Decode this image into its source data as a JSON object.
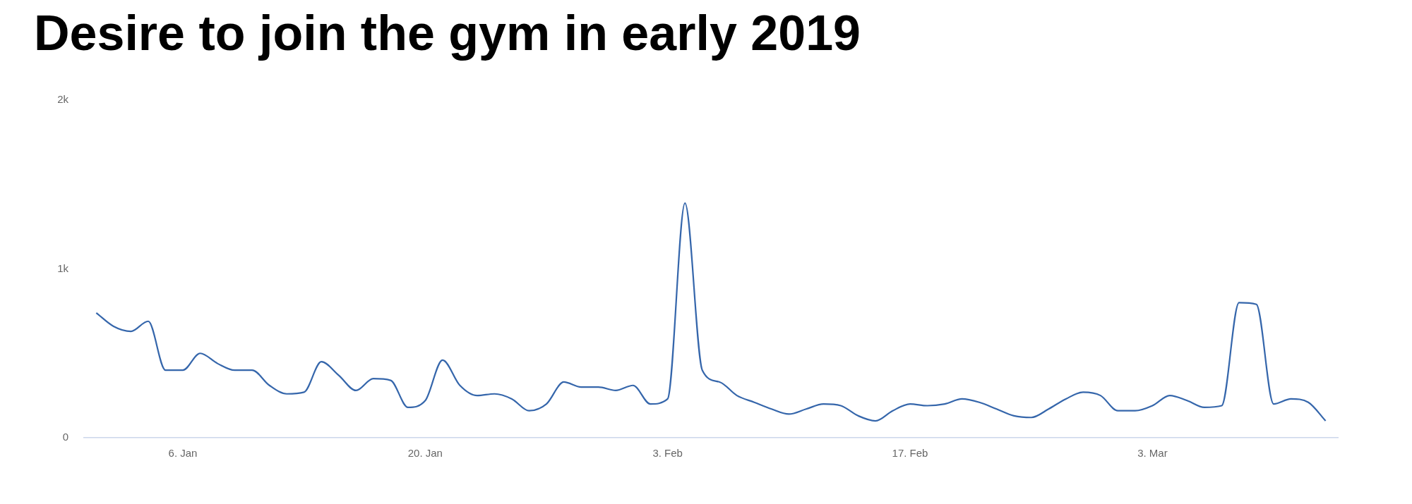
{
  "chart_data": {
    "type": "line",
    "title": "Desire to join the gym in early 2019",
    "x": [
      "2019-01-01",
      "2019-01-02",
      "2019-01-03",
      "2019-01-04",
      "2019-01-05",
      "2019-01-06",
      "2019-01-07",
      "2019-01-08",
      "2019-01-09",
      "2019-01-10",
      "2019-01-11",
      "2019-01-12",
      "2019-01-13",
      "2019-01-14",
      "2019-01-15",
      "2019-01-16",
      "2019-01-17",
      "2019-01-18",
      "2019-01-19",
      "2019-01-20",
      "2019-01-21",
      "2019-01-22",
      "2019-01-23",
      "2019-01-24",
      "2019-01-25",
      "2019-01-26",
      "2019-01-27",
      "2019-01-28",
      "2019-01-29",
      "2019-01-30",
      "2019-01-31",
      "2019-02-01",
      "2019-02-02",
      "2019-02-03",
      "2019-02-04",
      "2019-02-05",
      "2019-02-06",
      "2019-02-07",
      "2019-02-08",
      "2019-02-09",
      "2019-02-10",
      "2019-02-11",
      "2019-02-12",
      "2019-02-13",
      "2019-02-14",
      "2019-02-15",
      "2019-02-16",
      "2019-02-17",
      "2019-02-18",
      "2019-02-19",
      "2019-02-20",
      "2019-02-21",
      "2019-02-22",
      "2019-02-23",
      "2019-02-24",
      "2019-02-25",
      "2019-02-26",
      "2019-02-27",
      "2019-02-28",
      "2019-03-01",
      "2019-03-02",
      "2019-03-03",
      "2019-03-04",
      "2019-03-05",
      "2019-03-06",
      "2019-03-07",
      "2019-03-08",
      "2019-03-09",
      "2019-03-10",
      "2019-03-11",
      "2019-03-12",
      "2019-03-13"
    ],
    "values": [
      740,
      660,
      630,
      690,
      400,
      400,
      500,
      440,
      400,
      400,
      310,
      260,
      270,
      450,
      370,
      280,
      350,
      340,
      180,
      220,
      460,
      310,
      250,
      260,
      230,
      160,
      200,
      330,
      300,
      300,
      280,
      310,
      200,
      230,
      1390,
      400,
      330,
      250,
      210,
      170,
      140,
      170,
      200,
      190,
      130,
      100,
      160,
      200,
      190,
      200,
      230,
      210,
      170,
      130,
      120,
      170,
      230,
      270,
      250,
      160,
      160,
      190,
      250,
      220,
      180,
      190,
      800,
      790,
      200,
      230,
      210,
      100
    ],
    "color": "#3566ab",
    "xlim": [
      "2018-12-31T07:00",
      "2019-03-13T17:00"
    ],
    "xticks": [
      {
        "value": "2019-01-06",
        "label": "6. Jan"
      },
      {
        "value": "2019-01-20",
        "label": "20. Jan"
      },
      {
        "value": "2019-02-03",
        "label": "3. Feb"
      },
      {
        "value": "2019-02-17",
        "label": "17. Feb"
      },
      {
        "value": "2019-03-03",
        "label": "3. Mar"
      }
    ],
    "ylim": [
      0,
      2000
    ],
    "yticks": [
      0,
      {
        "value": 1000,
        "label": "1k"
      },
      {
        "value": 2000,
        "label": "2k"
      }
    ],
    "grid": false,
    "legend": false,
    "marker": "none"
  }
}
